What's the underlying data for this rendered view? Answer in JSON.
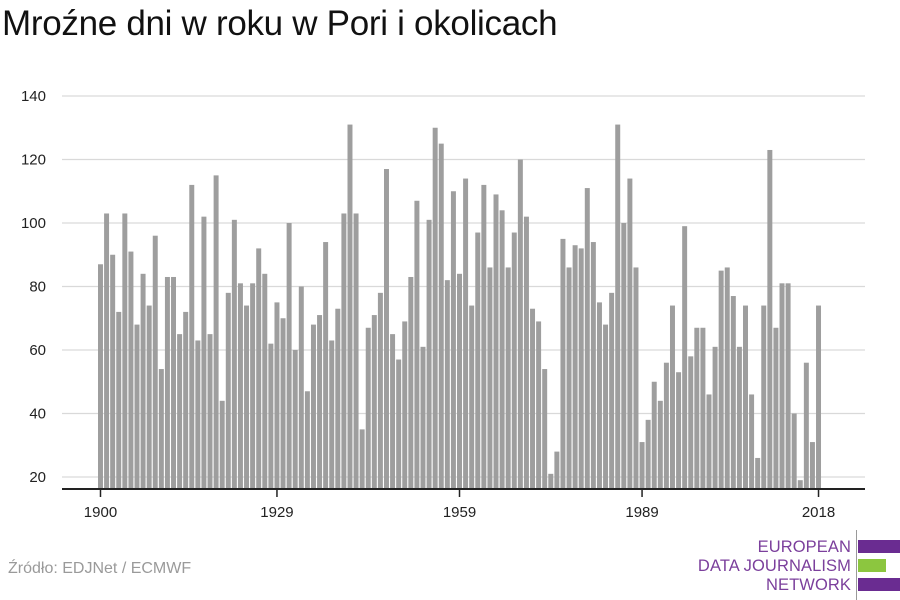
{
  "title": "Mroźne dni w roku w Pori i okolicach",
  "source": "Źródło: EDJNet / ECMWF",
  "logo": {
    "line1": "EUROPEAN",
    "line2": "DATA JOURNALISM",
    "line3": "NETWORK",
    "colors": [
      "#6a2c91",
      "#8cc63f",
      "#6a2c91"
    ]
  },
  "colors": {
    "bar": "#9e9e9e",
    "grid": "#d9d9d9",
    "axis": "#222222"
  },
  "chart_data": {
    "type": "bar",
    "title": "Mroźne dni w roku w Pori i okolicach",
    "xlabel": "",
    "ylabel": "",
    "ylim": [
      17,
      140
    ],
    "yticks": [
      20,
      40,
      60,
      80,
      100,
      120,
      140
    ],
    "xticks": [
      1900,
      1929,
      1959,
      1989,
      2018
    ],
    "grid": true,
    "start_year": 1900,
    "end_year": 2018,
    "values": [
      87,
      103,
      90,
      72,
      103,
      91,
      68,
      84,
      74,
      96,
      54,
      83,
      83,
      65,
      72,
      112,
      63,
      102,
      65,
      115,
      44,
      78,
      101,
      81,
      74,
      81,
      92,
      84,
      62,
      75,
      70,
      100,
      60,
      80,
      47,
      68,
      71,
      94,
      63,
      73,
      103,
      131,
      103,
      35,
      67,
      71,
      78,
      117,
      65,
      57,
      69,
      83,
      107,
      61,
      101,
      130,
      125,
      82,
      110,
      84,
      114,
      74,
      97,
      112,
      86,
      109,
      104,
      86,
      97,
      120,
      102,
      73,
      69,
      54,
      21,
      28,
      95,
      86,
      93,
      92,
      111,
      94,
      75,
      68,
      78,
      131,
      100,
      114,
      86,
      31,
      38,
      50,
      44,
      56,
      74,
      53,
      99,
      58,
      67,
      67,
      46,
      61,
      85,
      86,
      77,
      61,
      74,
      46,
      26,
      74,
      123,
      67,
      81,
      81,
      40,
      19,
      56,
      31,
      74
    ]
  }
}
